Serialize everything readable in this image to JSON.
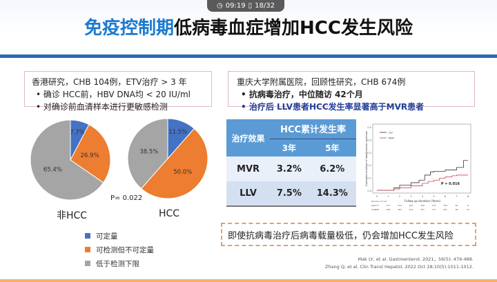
{
  "player": {
    "time": "09:19",
    "page": "18/32",
    "clock_icon": "clock-icon",
    "page_icon": "page-icon"
  },
  "title": {
    "highlight": "免疫控制期",
    "rest": "低病毒血症增加HCC发生风险"
  },
  "left_box": {
    "heading": "香港研究，CHB 104例，ETV治疗 > 3 年",
    "bullets": [
      "确诊 HCC前，HBV DNA均 < 20 IU/ml",
      "对确诊前血清样本进行更敏感检测"
    ]
  },
  "right_box": {
    "heading": "重庆大学附属医院，回顾性研究，CHB 674例",
    "bullets": [
      "抗病毒治疗，中位随访 42个月",
      "治疗后 LLV患者HCC发生率显著高于MVR患者"
    ]
  },
  "colors": {
    "blue": "#4472c4",
    "orange": "#ed7d31",
    "gray": "#a5a5a5",
    "accent": "#1a7ad0"
  },
  "chart_data": [
    {
      "type": "pie",
      "title": "非HCC",
      "categories": [
        "可定量",
        "可检测但不可定量",
        "低于检测下限"
      ],
      "values": [
        7.7,
        26.9,
        65.4
      ],
      "labels": [
        "7.7%",
        "26.9%",
        "65.4%"
      ]
    },
    {
      "type": "pie",
      "title": "HCC",
      "categories": [
        "可定量",
        "可检测但不可定量",
        "低于检测下限"
      ],
      "values": [
        11.5,
        50.0,
        38.5
      ],
      "labels": [
        "11.5%",
        "50.0%",
        "38.5%"
      ]
    },
    {
      "type": "table",
      "header": {
        "col0": "治疗效果",
        "group": "HCC累计发生率",
        "c1": "3年",
        "c2": "5年"
      },
      "rows": [
        [
          "MVR",
          "3.2%",
          "6.2%"
        ],
        [
          "LLV",
          "7.5%",
          "14.3%"
        ]
      ]
    },
    {
      "type": "line",
      "xlabel": "Follow up duration (Years)",
      "ylabel": "Cumulative incidence of hepatocellular carcinoma",
      "xlim": [
        0,
        8
      ],
      "ylim": [
        0,
        0.5
      ],
      "xticks": [
        "0",
        "1",
        "2",
        "3",
        "4",
        "5",
        "6",
        "7",
        "8"
      ],
      "yticks": [
        "0.0",
        "0.1",
        "0.2",
        "0.3",
        "0.4",
        "0.5"
      ],
      "annotation": "P = 0.016",
      "risk_label": "Number at risk",
      "series": [
        {
          "name": "LLV",
          "color": "#333333",
          "points": [
            [
              0,
              0
            ],
            [
              1,
              0
            ],
            [
              1.5,
              0.02
            ],
            [
              2,
              0.04
            ],
            [
              3,
              0.06
            ],
            [
              3.7,
              0.08
            ],
            [
              4.2,
              0.12
            ],
            [
              4.7,
              0.145
            ],
            [
              5,
              0.15
            ],
            [
              6,
              0.16
            ],
            [
              7,
              0.18
            ],
            [
              7.6,
              0.18
            ],
            [
              7.6,
              0.235
            ],
            [
              8,
              0.235
            ]
          ],
          "at_risk": [
            "277",
            "277",
            "243",
            "205",
            "246",
            "176",
            "150",
            "60",
            "11"
          ]
        },
        {
          "name": "MVR",
          "color": "#d04050",
          "points": [
            [
              0,
              0
            ],
            [
              1,
              0
            ],
            [
              1.5,
              0.01
            ],
            [
              2,
              0.02
            ],
            [
              3,
              0.035
            ],
            [
              4,
              0.055
            ],
            [
              4.5,
              0.07
            ],
            [
              5,
              0.08
            ],
            [
              5.5,
              0.095
            ],
            [
              6,
              0.105
            ],
            [
              6.6,
              0.115
            ],
            [
              7,
              0.12
            ],
            [
              8,
              0.12
            ]
          ],
          "at_risk": [
            "498",
            "498",
            "463",
            "431",
            "351",
            "171",
            "161",
            "86",
            "14"
          ]
        }
      ]
    }
  ],
  "p_value": "P= 0.022",
  "conclusion": "即使抗病毒治疗后病毒载量极低，仍会增加HCC发生风险",
  "references": [
    "Mak LY, et al.  Gastroenterol, 2021，56(5): 479-488.",
    "Zhang Q, et al.  Clin Transl Hepatol, 2022 Oct 28;10(5):1011-1012."
  ]
}
